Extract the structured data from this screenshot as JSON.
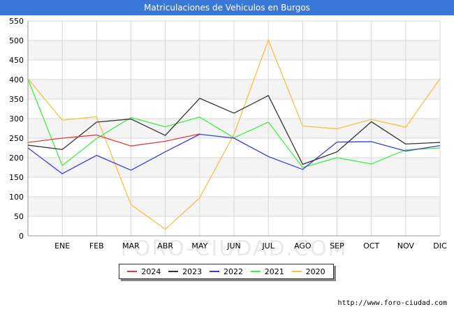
{
  "chart_data": {
    "type": "line",
    "title": "Matriculaciones de Vehiculos en Burgos",
    "xlabel": "",
    "ylabel": "",
    "categories": [
      "",
      "ENE",
      "FEB",
      "MAR",
      "ABR",
      "MAY",
      "JUN",
      "JUL",
      "AGO",
      "SEP",
      "OCT",
      "NOV",
      "DIC"
    ],
    "ylim": [
      0,
      550
    ],
    "yticks": [
      0,
      50,
      100,
      150,
      200,
      250,
      300,
      350,
      400,
      450,
      500,
      550
    ],
    "grid": true,
    "legend_position": "bottom",
    "watermark": "FORO-CIUDAD.COM",
    "series": [
      {
        "name": "2024",
        "color": "#e83a3a",
        "values": [
          239,
          250,
          258,
          230,
          242,
          261,
          null,
          null,
          null,
          null,
          null,
          null,
          null
        ]
      },
      {
        "name": "2023",
        "color": "#333333",
        "values": [
          232,
          221,
          291,
          299,
          257,
          352,
          314,
          359,
          183,
          215,
          292,
          235,
          239
        ]
      },
      {
        "name": "2022",
        "color": "#3b3bdc",
        "values": [
          225,
          159,
          206,
          168,
          215,
          260,
          250,
          203,
          170,
          240,
          241,
          217,
          231
        ]
      },
      {
        "name": "2021",
        "color": "#3ef03e",
        "values": [
          401,
          180,
          249,
          303,
          279,
          304,
          251,
          291,
          175,
          200,
          184,
          220,
          225
        ]
      },
      {
        "name": "2020",
        "color": "#f8c040",
        "values": [
          402,
          296,
          305,
          80,
          17,
          97,
          260,
          501,
          281,
          274,
          298,
          278,
          402
        ]
      }
    ]
  },
  "source": "http://www.foro-ciudad.com"
}
